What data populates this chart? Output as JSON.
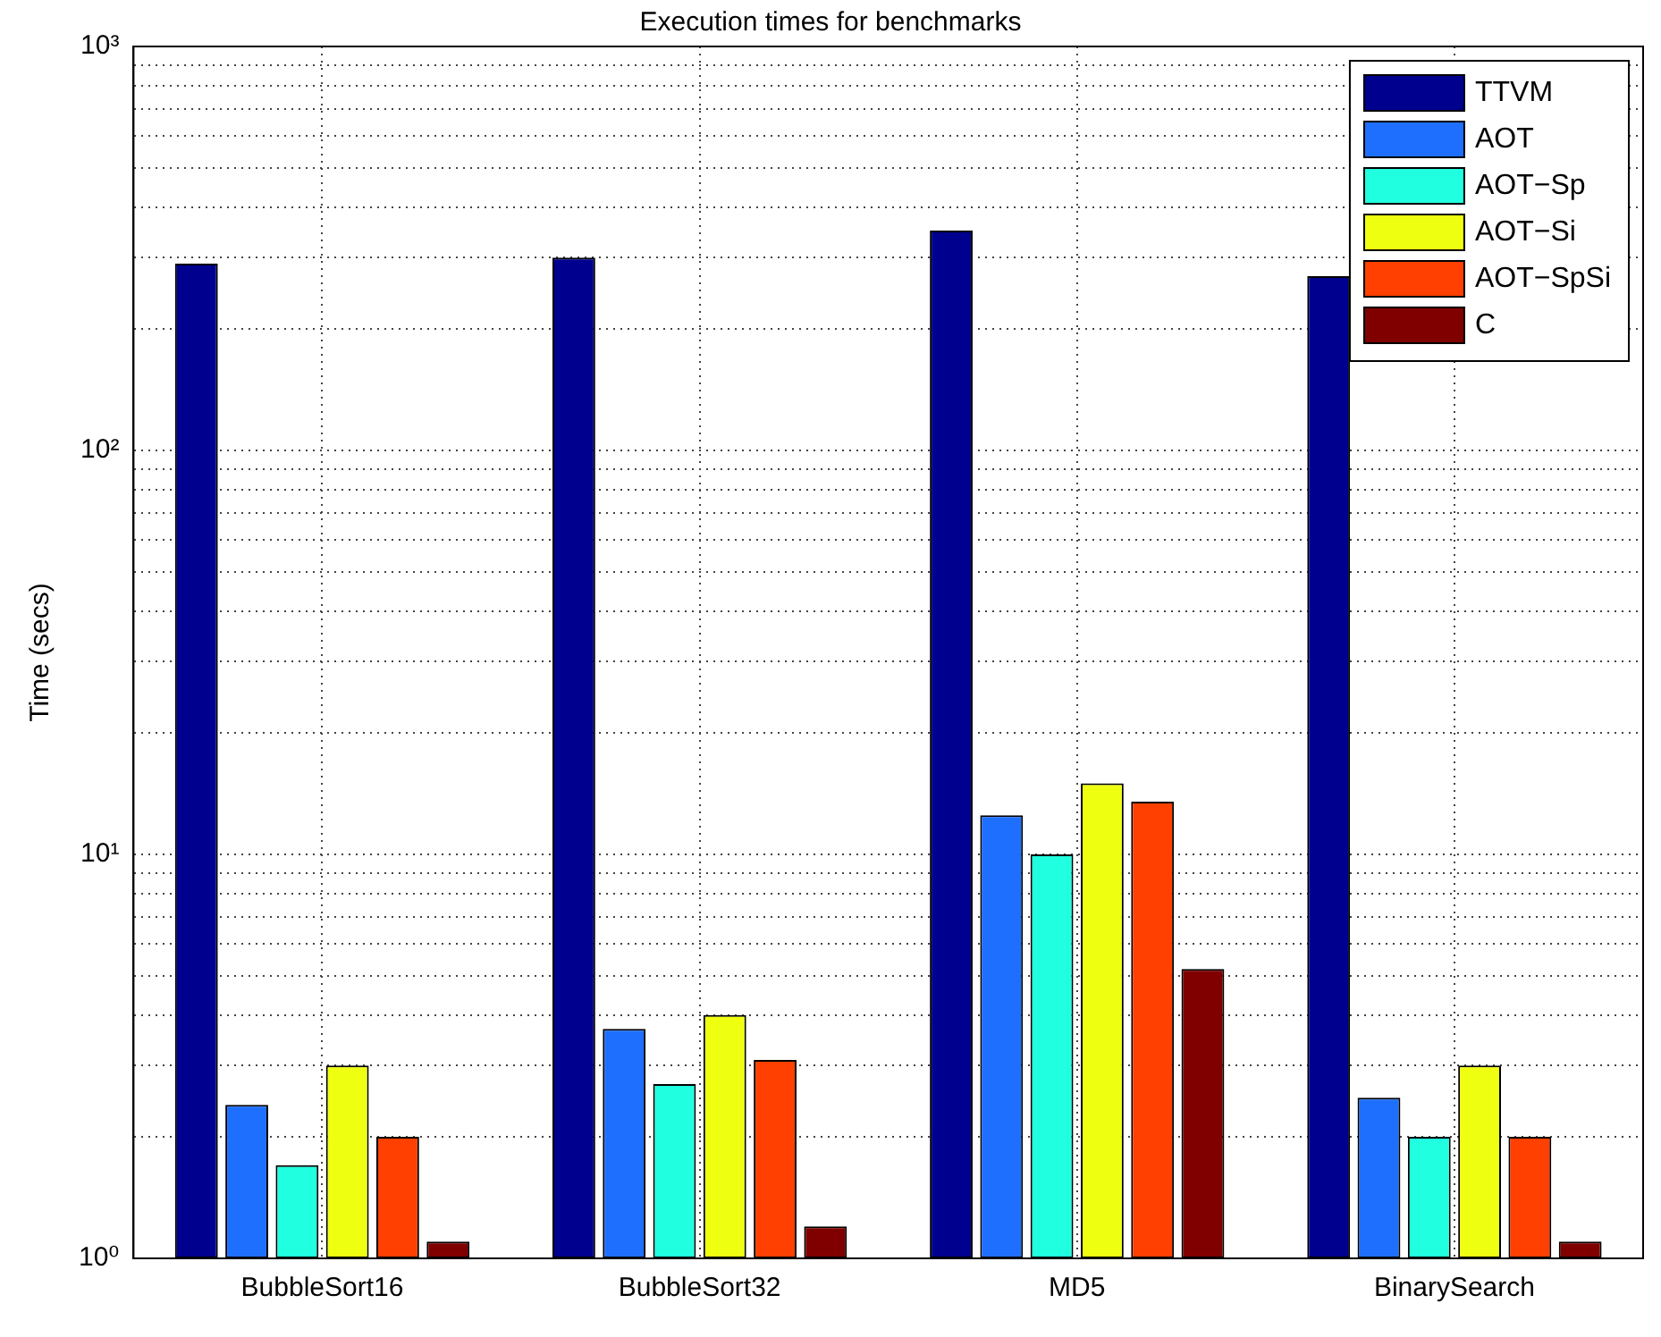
{
  "chart_data": {
    "type": "bar",
    "title": "Execution times for benchmarks",
    "ylabel": "Time (secs)",
    "categories": [
      "BubbleSort16",
      "BubbleSort32",
      "MD5",
      "BinarySearch"
    ],
    "series": [
      {
        "name": "TTVM",
        "color": "#00008f",
        "values": [
          290,
          300,
          350,
          270
        ]
      },
      {
        "name": "AOT",
        "color": "#1f6fff",
        "values": [
          2.4,
          3.7,
          12.5,
          2.5
        ]
      },
      {
        "name": "AOT−Sp",
        "color": "#20ffdf",
        "values": [
          1.7,
          2.7,
          10,
          2.0
        ]
      },
      {
        "name": "AOT−Si",
        "color": "#efff10",
        "values": [
          3.0,
          4.0,
          15,
          3.0
        ]
      },
      {
        "name": "AOT−SpSi",
        "color": "#ff4000",
        "values": [
          2.0,
          3.1,
          13.5,
          2.0
        ]
      },
      {
        "name": "C",
        "color": "#800000",
        "values": [
          1.1,
          1.2,
          5.2,
          1.1
        ]
      }
    ],
    "log": true,
    "ylim": [
      1,
      1000
    ],
    "yticks": [
      {
        "value": 1,
        "label": "10⁰"
      },
      {
        "value": 2,
        "label": null
      },
      {
        "value": 3,
        "label": null
      },
      {
        "value": 4,
        "label": null
      },
      {
        "value": 5,
        "label": null
      },
      {
        "value": 6,
        "label": null
      },
      {
        "value": 7,
        "label": null
      },
      {
        "value": 8,
        "label": null
      },
      {
        "value": 9,
        "label": null
      },
      {
        "value": 10,
        "label": "10¹"
      },
      {
        "value": 20,
        "label": null
      },
      {
        "value": 30,
        "label": null
      },
      {
        "value": 40,
        "label": null
      },
      {
        "value": 50,
        "label": null
      },
      {
        "value": 60,
        "label": null
      },
      {
        "value": 70,
        "label": null
      },
      {
        "value": 80,
        "label": null
      },
      {
        "value": 90,
        "label": null
      },
      {
        "value": 100,
        "label": "10²"
      },
      {
        "value": 200,
        "label": null
      },
      {
        "value": 300,
        "label": null
      },
      {
        "value": 400,
        "label": null
      },
      {
        "value": 500,
        "label": null
      },
      {
        "value": 600,
        "label": null
      },
      {
        "value": 700,
        "label": null
      },
      {
        "value": 800,
        "label": null
      },
      {
        "value": 900,
        "label": null
      },
      {
        "value": 1000,
        "label": "10³"
      }
    ],
    "grid": true,
    "legend": "top right"
  }
}
